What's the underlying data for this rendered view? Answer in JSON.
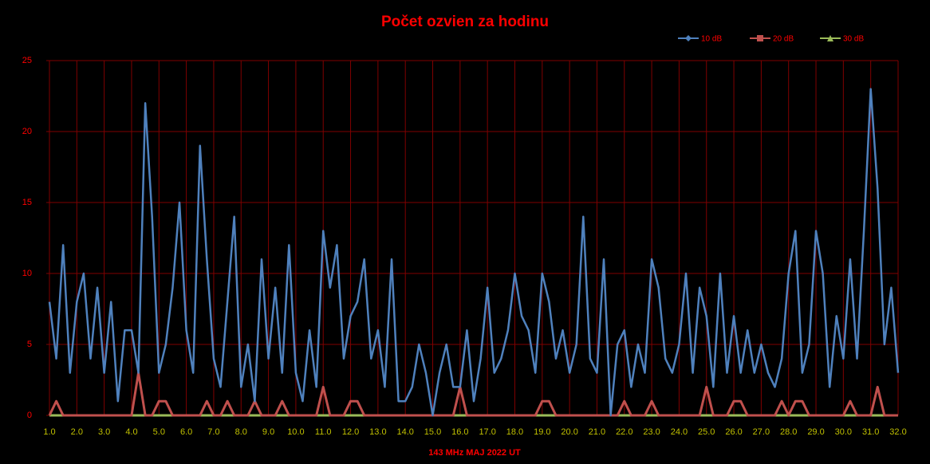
{
  "chart_data": {
    "type": "line",
    "title": "Počet ozvien za hodinu",
    "x_label": "143 MHz MAJ  2022  UT",
    "legend": "top-right",
    "grid": true,
    "x": [
      1,
      1.25,
      1.5,
      1.75,
      2,
      2.25,
      2.5,
      2.75,
      3,
      3.25,
      3.5,
      3.75,
      4,
      4.25,
      4.5,
      4.75,
      5,
      5.25,
      5.5,
      5.75,
      6,
      6.25,
      6.5,
      6.75,
      7,
      7.25,
      7.5,
      7.75,
      8,
      8.25,
      8.5,
      8.75,
      9,
      9.25,
      9.5,
      9.75,
      10,
      10.25,
      10.5,
      10.75,
      11,
      11.25,
      11.5,
      11.75,
      12,
      12.25,
      12.5,
      12.75,
      13,
      13.25,
      13.5,
      13.75,
      14,
      14.25,
      14.5,
      14.75,
      15,
      15.25,
      15.5,
      15.75,
      16,
      16.25,
      16.5,
      16.75,
      17,
      17.25,
      17.5,
      17.75,
      18,
      18.25,
      18.5,
      18.75,
      19,
      19.25,
      19.5,
      19.75,
      20,
      20.25,
      20.5,
      20.75,
      21,
      21.25,
      21.5,
      21.75,
      22,
      22.25,
      22.5,
      22.75,
      23,
      23.25,
      23.5,
      23.75,
      24,
      24.25,
      24.5,
      24.75,
      25,
      25.25,
      25.5,
      25.75,
      26,
      26.25,
      26.5,
      26.75,
      27,
      27.25,
      27.5,
      27.75,
      28,
      28.25,
      28.5,
      28.75,
      29,
      29.25,
      29.5,
      29.75,
      30,
      30.25,
      30.5,
      30.75,
      31,
      31.25,
      31.5,
      31.75,
      32
    ],
    "series": [
      {
        "name": "10 dB",
        "color": "#4f81bd",
        "values": [
          8,
          4,
          12,
          3,
          8,
          10,
          4,
          9,
          3,
          8,
          1,
          6,
          6,
          3,
          22,
          14,
          3,
          5,
          9,
          15,
          6,
          3,
          19,
          11,
          4,
          2,
          8,
          14,
          2,
          5,
          1,
          11,
          4,
          9,
          3,
          12,
          3,
          1,
          6,
          2,
          13,
          9,
          12,
          4,
          7,
          8,
          11,
          4,
          6,
          2,
          11,
          1,
          1,
          2,
          5,
          3,
          0,
          3,
          5,
          2,
          2,
          6,
          1,
          4,
          9,
          3,
          4,
          6,
          10,
          7,
          6,
          3,
          10,
          8,
          4,
          6,
          3,
          5,
          14,
          4,
          3,
          11,
          0,
          5,
          6,
          2,
          5,
          3,
          11,
          9,
          4,
          3,
          5,
          10,
          3,
          9,
          7,
          2,
          10,
          3,
          7,
          3,
          6,
          3,
          5,
          3,
          2,
          4,
          10,
          13,
          3,
          5,
          13,
          10,
          2,
          7,
          4,
          11,
          4,
          13,
          23,
          16,
          5,
          9,
          3
        ]
      },
      {
        "name": "20 dB",
        "color": "#c0504d",
        "values": [
          0,
          1,
          0,
          0,
          0,
          0,
          0,
          0,
          0,
          0,
          0,
          0,
          0,
          3,
          0,
          0,
          1,
          1,
          0,
          0,
          0,
          0,
          0,
          1,
          0,
          0,
          1,
          0,
          0,
          0,
          1,
          0,
          0,
          0,
          1,
          0,
          0,
          0,
          0,
          0,
          2,
          0,
          0,
          0,
          1,
          1,
          0,
          0,
          0,
          0,
          0,
          0,
          0,
          0,
          0,
          0,
          0,
          0,
          0,
          0,
          2,
          0,
          0,
          0,
          0,
          0,
          0,
          0,
          0,
          0,
          0,
          0,
          1,
          1,
          0,
          0,
          0,
          0,
          0,
          0,
          0,
          0,
          0,
          0,
          1,
          0,
          0,
          0,
          1,
          0,
          0,
          0,
          0,
          0,
          0,
          0,
          2,
          0,
          0,
          0,
          1,
          1,
          0,
          0,
          0,
          0,
          0,
          1,
          0,
          1,
          1,
          0,
          0,
          0,
          0,
          0,
          0,
          1,
          0,
          0,
          0,
          2,
          0,
          0,
          0
        ]
      },
      {
        "name": "30 dB",
        "color": "#9bbb59",
        "values": [
          0,
          0,
          0,
          0,
          0,
          0,
          0,
          0,
          0,
          0,
          0,
          0,
          0,
          0,
          0,
          0,
          0,
          0,
          0,
          0,
          0,
          0,
          0,
          0,
          0,
          0,
          0,
          0,
          0,
          0,
          0,
          0,
          0,
          0,
          0,
          0,
          0,
          0,
          0,
          0,
          0,
          0,
          0,
          0,
          0,
          0,
          0,
          0,
          0,
          0,
          0,
          0,
          0,
          0,
          0,
          0,
          0,
          0,
          0,
          0,
          0,
          0,
          0,
          0,
          0,
          0,
          0,
          0,
          0,
          0,
          0,
          0,
          0,
          0,
          0,
          0,
          0,
          0,
          0,
          0,
          0,
          0,
          0,
          0,
          0,
          0,
          0,
          0,
          0,
          0,
          0,
          0,
          0,
          0,
          0,
          0,
          0,
          0,
          0,
          0,
          0,
          0,
          0,
          0,
          0,
          0,
          0,
          0,
          0,
          0,
          0,
          0,
          0,
          0,
          0,
          0,
          0,
          0,
          0,
          0,
          0,
          0,
          0,
          0,
          0
        ]
      }
    ],
    "xlim": [
      1,
      32
    ],
    "xticks": [
      {
        "value": 1,
        "label": "1.0"
      },
      {
        "value": 2,
        "label": "2.0"
      },
      {
        "value": 3,
        "label": "3.0"
      },
      {
        "value": 4,
        "label": "4.0"
      },
      {
        "value": 5,
        "label": "5.0"
      },
      {
        "value": 6,
        "label": "6.0"
      },
      {
        "value": 7,
        "label": "7.0"
      },
      {
        "value": 8,
        "label": "8.0"
      },
      {
        "value": 9,
        "label": "9.0"
      },
      {
        "value": 10,
        "label": "10.0"
      },
      {
        "value": 11,
        "label": "11.0"
      },
      {
        "value": 12,
        "label": "12.0"
      },
      {
        "value": 13,
        "label": "13.0"
      },
      {
        "value": 14,
        "label": "14.0"
      },
      {
        "value": 15,
        "label": "15.0"
      },
      {
        "value": 16,
        "label": "16.0"
      },
      {
        "value": 17,
        "label": "17.0"
      },
      {
        "value": 18,
        "label": "18.0"
      },
      {
        "value": 19,
        "label": "19.0"
      },
      {
        "value": 20,
        "label": "20.0"
      },
      {
        "value": 21,
        "label": "21.0"
      },
      {
        "value": 22,
        "label": "22.0"
      },
      {
        "value": 23,
        "label": "23.0"
      },
      {
        "value": 24,
        "label": "24.0"
      },
      {
        "value": 25,
        "label": "25.0"
      },
      {
        "value": 26,
        "label": "26.0"
      },
      {
        "value": 27,
        "label": "27.0"
      },
      {
        "value": 28,
        "label": "28.0"
      },
      {
        "value": 29,
        "label": "29.0"
      },
      {
        "value": 30,
        "label": "30.0"
      },
      {
        "value": 31,
        "label": "31.0"
      },
      {
        "value": 32,
        "label": "32.0"
      }
    ],
    "ylim": [
      0,
      25
    ],
    "yticks": [
      0,
      5,
      10,
      15,
      20,
      25
    ]
  }
}
